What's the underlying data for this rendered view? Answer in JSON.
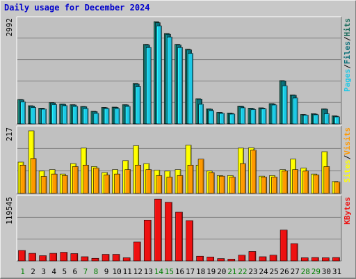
{
  "title": "Daily usage for December 2024",
  "colors": {
    "background": "#c8c8c8",
    "plot_bg": "#c0c0c0",
    "title": "#0000cc",
    "pages": "#1ec8e6",
    "files": "#0a6e78",
    "hits": "#1a6a5a",
    "visits": "#ff9900",
    "sites": "#ffff00",
    "kbytes": "#ee1111",
    "day_weekday": "#000000",
    "day_weekend": "#008000"
  },
  "chart_data": [
    {
      "type": "bar",
      "name": "hits-files-pages",
      "categories": [
        "1",
        "2",
        "3",
        "4",
        "5",
        "6",
        "7",
        "8",
        "9",
        "10",
        "11",
        "12",
        "13",
        "14",
        "15",
        "16",
        "17",
        "18",
        "19",
        "20",
        "21",
        "22",
        "23",
        "24",
        "25",
        "26",
        "27",
        "28",
        "29",
        "30",
        "31"
      ],
      "ymax_label": "2992",
      "ylim": [
        0,
        2992
      ],
      "legend": [
        "Pages",
        "/",
        "Files",
        "/",
        "Hits"
      ],
      "series": [
        {
          "name": "Hits",
          "values": [
            700,
            520,
            450,
            610,
            570,
            550,
            500,
            360,
            470,
            480,
            550,
            1160,
            2280,
            2930,
            2590,
            2280,
            2140,
            720,
            430,
            330,
            310,
            510,
            450,
            460,
            580,
            1240,
            830,
            270,
            290,
            430,
            230
          ]
        },
        {
          "name": "Files",
          "values": [
            690,
            510,
            440,
            600,
            560,
            540,
            490,
            350,
            460,
            470,
            540,
            1140,
            2260,
            2900,
            2570,
            2260,
            2120,
            710,
            420,
            320,
            300,
            500,
            440,
            450,
            570,
            1230,
            820,
            260,
            280,
            420,
            220
          ]
        },
        {
          "name": "Pages",
          "values": [
            630,
            470,
            420,
            550,
            520,
            500,
            440,
            300,
            440,
            440,
            500,
            1070,
            2190,
            2810,
            2490,
            2190,
            2020,
            560,
            380,
            300,
            280,
            460,
            410,
            430,
            540,
            1090,
            740,
            250,
            260,
            290,
            200
          ]
        }
      ]
    },
    {
      "type": "bar",
      "name": "visits-sites",
      "categories": [
        "1",
        "2",
        "3",
        "4",
        "5",
        "6",
        "7",
        "8",
        "9",
        "10",
        "11",
        "12",
        "13",
        "14",
        "15",
        "16",
        "17",
        "18",
        "19",
        "20",
        "21",
        "22",
        "23",
        "24",
        "25",
        "26",
        "27",
        "28",
        "29",
        "30",
        "31"
      ],
      "ymax_label": "217",
      "ylim": [
        0,
        217
      ],
      "legend": [
        "Sites",
        "/",
        "Visits"
      ],
      "series": [
        {
          "name": "Sites",
          "values": [
            105,
            210,
            75,
            80,
            65,
            100,
            152,
            90,
            70,
            80,
            110,
            160,
            100,
            78,
            75,
            80,
            162,
            95,
            75,
            60,
            60,
            152,
            153,
            58,
            60,
            80,
            115,
            85,
            65,
            140,
            40
          ]
        },
        {
          "name": "Visits",
          "values": [
            95,
            117,
            57,
            65,
            60,
            90,
            95,
            85,
            62,
            65,
            80,
            95,
            80,
            60,
            55,
            60,
            95,
            115,
            70,
            58,
            55,
            100,
            145,
            55,
            55,
            75,
            80,
            75,
            62,
            90,
            38
          ]
        }
      ]
    },
    {
      "type": "bar",
      "name": "kbytes",
      "categories": [
        "1",
        "2",
        "3",
        "4",
        "5",
        "6",
        "7",
        "8",
        "9",
        "10",
        "11",
        "12",
        "13",
        "14",
        "15",
        "16",
        "17",
        "18",
        "19",
        "20",
        "21",
        "22",
        "23",
        "24",
        "25",
        "26",
        "27",
        "28",
        "29",
        "30",
        "31"
      ],
      "ymax_label": "119545",
      "ylim": [
        0,
        119545
      ],
      "legend": [
        "KBytes"
      ],
      "series": [
        {
          "name": "KBytes",
          "values": [
            20000,
            14500,
            10000,
            14500,
            16500,
            14000,
            8000,
            5000,
            12500,
            12500,
            6000,
            36000,
            78000,
            118000,
            112000,
            93000,
            77000,
            9000,
            7500,
            4500,
            3500,
            11000,
            18000,
            8000,
            11000,
            59000,
            33000,
            6000,
            6500,
            6000,
            6500
          ]
        }
      ]
    }
  ],
  "days": [
    {
      "label": "1",
      "weekend": true
    },
    {
      "label": "2",
      "weekend": false
    },
    {
      "label": "3",
      "weekend": false
    },
    {
      "label": "4",
      "weekend": false
    },
    {
      "label": "5",
      "weekend": false
    },
    {
      "label": "6",
      "weekend": false
    },
    {
      "label": "7",
      "weekend": true
    },
    {
      "label": "8",
      "weekend": true
    },
    {
      "label": "9",
      "weekend": false
    },
    {
      "label": "10",
      "weekend": false
    },
    {
      "label": "11",
      "weekend": false
    },
    {
      "label": "12",
      "weekend": false
    },
    {
      "label": "13",
      "weekend": false
    },
    {
      "label": "14",
      "weekend": true
    },
    {
      "label": "15",
      "weekend": true
    },
    {
      "label": "16",
      "weekend": false
    },
    {
      "label": "17",
      "weekend": false
    },
    {
      "label": "18",
      "weekend": false
    },
    {
      "label": "19",
      "weekend": false
    },
    {
      "label": "20",
      "weekend": false
    },
    {
      "label": "21",
      "weekend": true
    },
    {
      "label": "22",
      "weekend": true
    },
    {
      "label": "23",
      "weekend": false
    },
    {
      "label": "24",
      "weekend": false
    },
    {
      "label": "25",
      "weekend": false
    },
    {
      "label": "26",
      "weekend": false
    },
    {
      "label": "27",
      "weekend": false
    },
    {
      "label": "28",
      "weekend": true
    },
    {
      "label": "29",
      "weekend": true
    },
    {
      "label": "30",
      "weekend": false
    },
    {
      "label": "31",
      "weekend": false
    }
  ]
}
